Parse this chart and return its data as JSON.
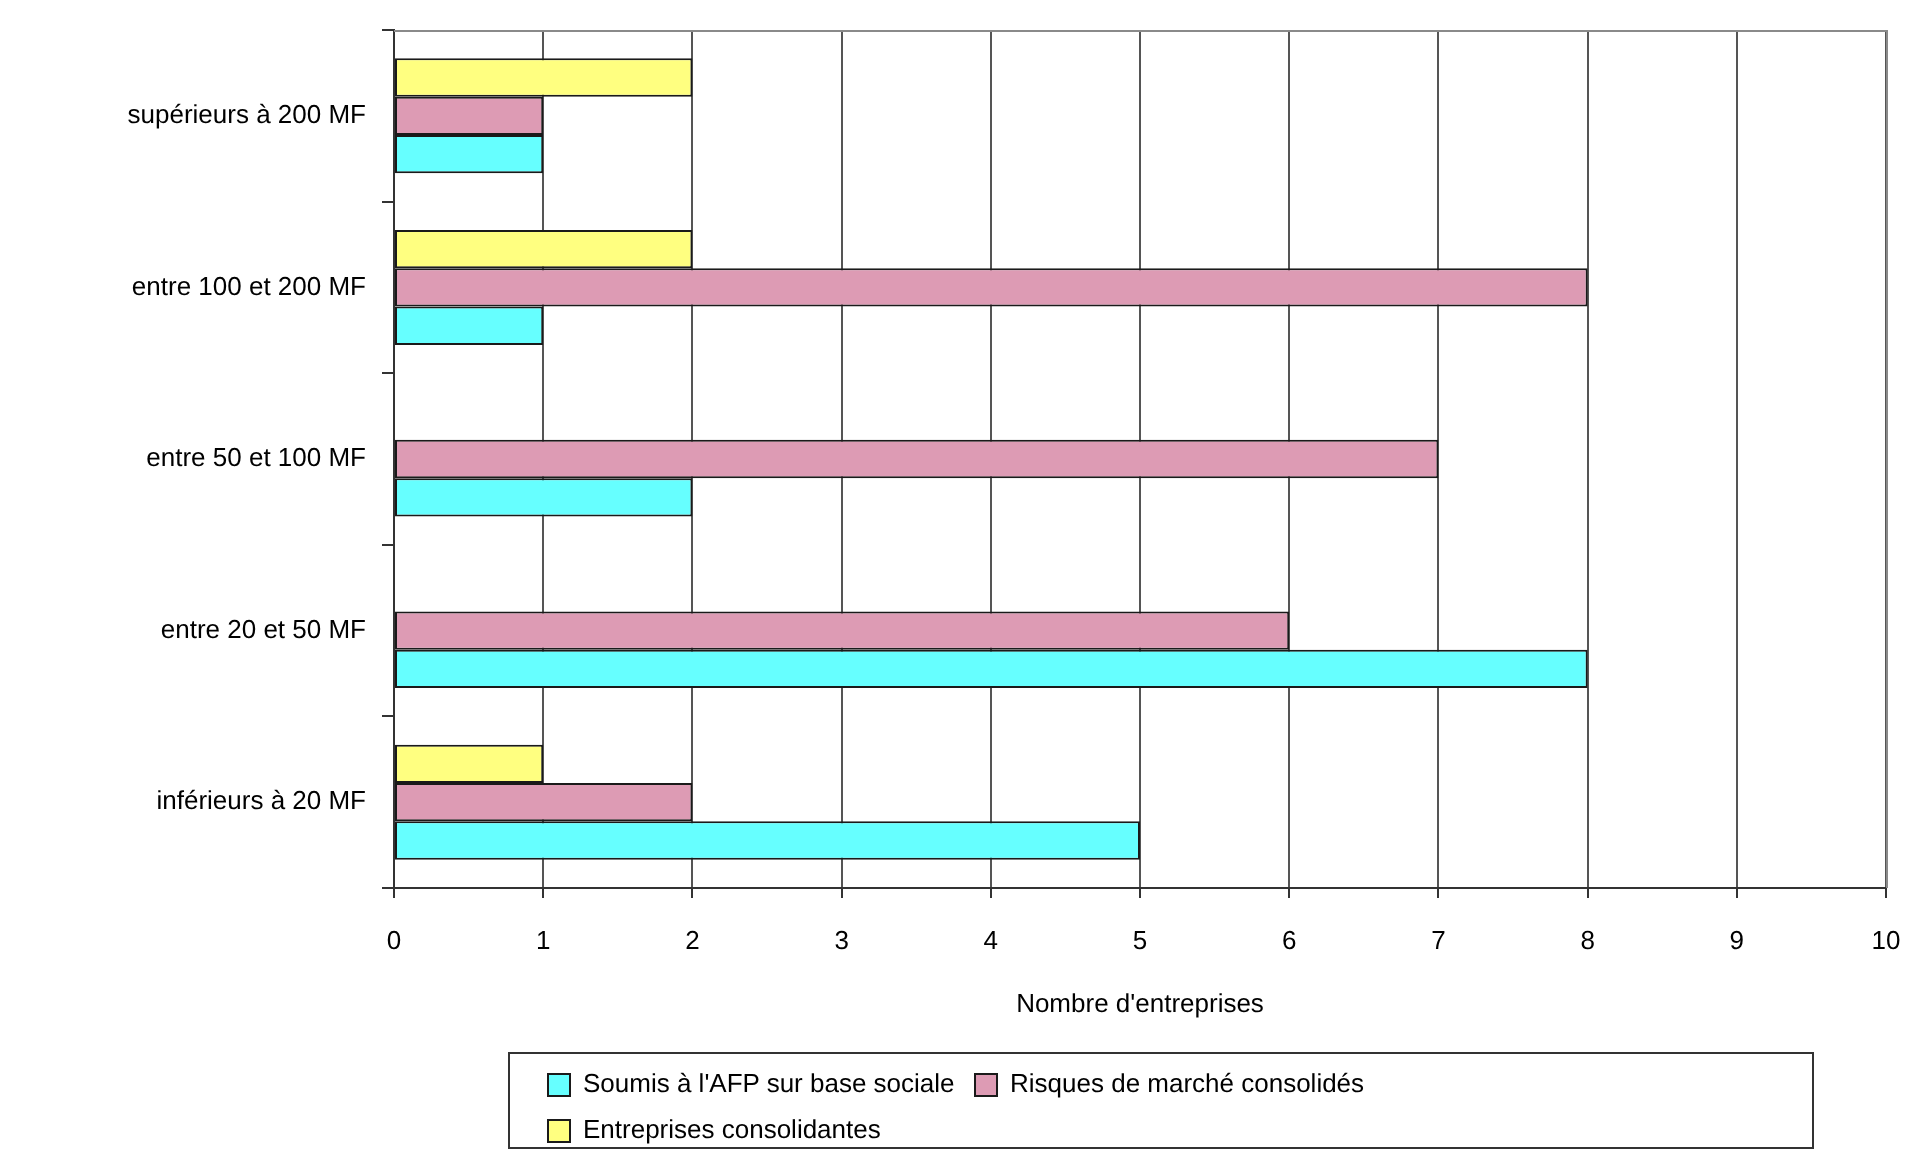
{
  "chart_data": {
    "type": "bar",
    "orientation": "horizontal",
    "categories": [
      "supérieurs à 200 MF",
      "entre 100 et 200 MF",
      "entre 50 et 100 MF",
      "entre 20 et 50 MF",
      "inférieurs à 20 MF"
    ],
    "series": [
      {
        "name": "Soumis à l'AFP sur base sociale",
        "color": "#66ffff",
        "values": [
          1,
          1,
          2,
          8,
          5
        ]
      },
      {
        "name": "Risques de marché consolidés",
        "color": "#dd9bb4",
        "values": [
          1,
          8,
          7,
          6,
          2
        ]
      },
      {
        "name": "Entreprises consolidantes",
        "color": "#ffff80",
        "values": [
          2,
          2,
          null,
          null,
          1
        ]
      }
    ],
    "xlabel": "Nombre d'entreprises",
    "xlim": [
      0,
      10
    ],
    "xticks": [
      0,
      1,
      2,
      3,
      4,
      5,
      6,
      7,
      8,
      9,
      10
    ],
    "grid": "x",
    "legend": "bottom"
  }
}
